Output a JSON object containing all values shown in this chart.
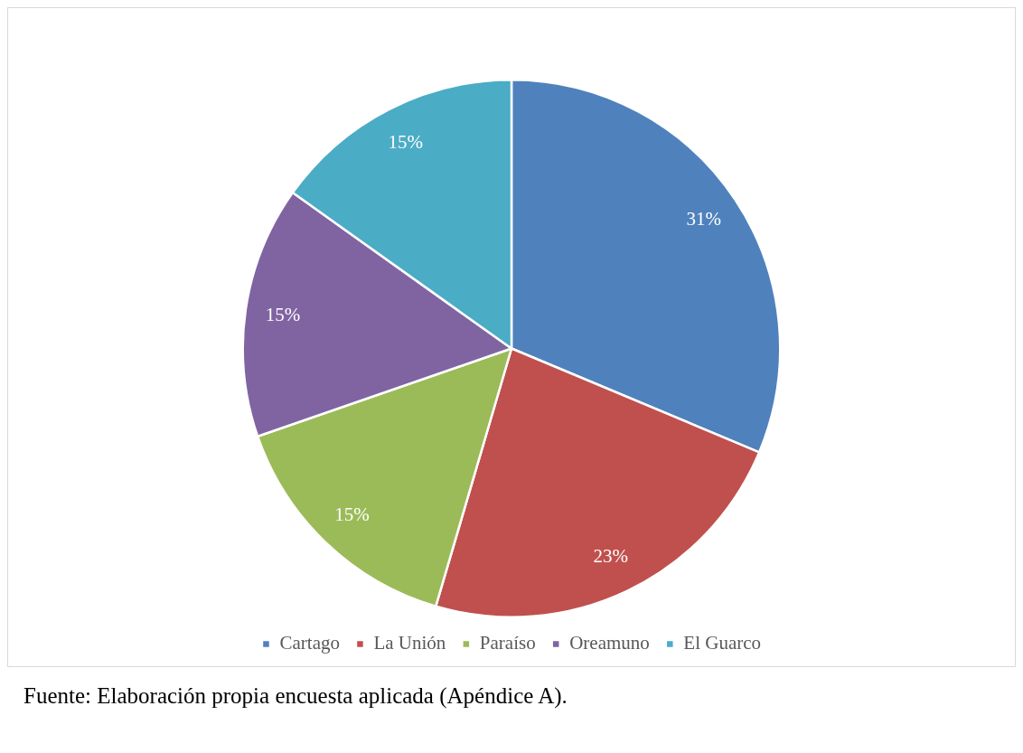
{
  "chart_data": {
    "type": "pie",
    "categories": [
      "Cartago",
      "La Unión",
      "Paraíso",
      "Oreamuno",
      "El Guarco"
    ],
    "values": [
      31,
      23,
      15,
      15,
      15
    ],
    "value_labels": [
      "31%",
      "23%",
      "15%",
      "15%",
      "15%"
    ],
    "colors": [
      "#4f81bd",
      "#c0504d",
      "#9bbb59",
      "#8064a2",
      "#4bacc6"
    ],
    "legend": "bottom",
    "annotations": [
      "Fuente: Elaboración propia encuesta aplicada (Apéndice A)."
    ]
  }
}
